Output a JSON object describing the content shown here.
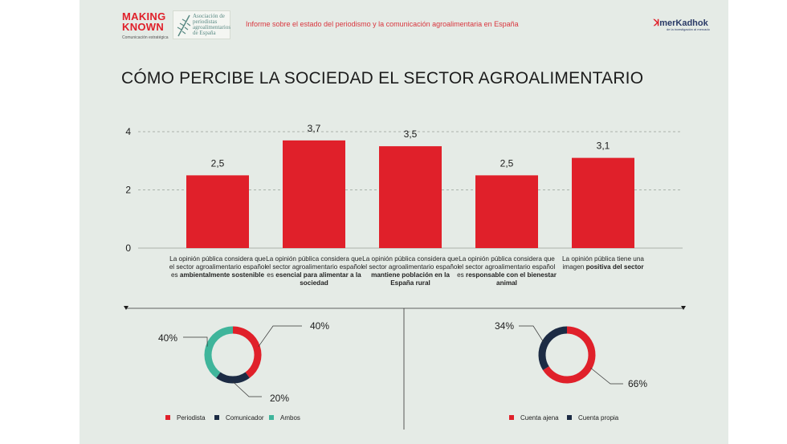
{
  "header": {
    "brand_left": "MAKING KNOWN",
    "brand_left_sub": "Comunicación estratégica",
    "assoc_logo_text": "Asociación de periodistas agroalimentarios de España",
    "report_title": "Informe sobre el estado del periodismo y la comunicación agroalimentaria en España",
    "brand_right": "merKadhok",
    "brand_right_tag": "de la investigación al mercado"
  },
  "page_title": "CÓMO PERCIBE LA SOCIEDAD EL SECTOR AGROALIMENTARIO",
  "colors": {
    "red": "#e0202a",
    "navy": "#1c2b44",
    "teal": "#3fb59b",
    "background": "#e5ebe6"
  },
  "chart_data": [
    {
      "type": "bar",
      "categories": [
        "La opinión pública considera que el sector agroalimentario español es ambientalmente sostenible",
        "La opinión pública considera que el sector agroalimentario español es esencial para alimentar a la sociedad",
        "La opinión pública considera que el sector agroalimentario español mantiene población en la España rural",
        "La opinión pública considera que el sector agroalimentario español es responsable con el bienestar animal",
        "La opinión pública tiene una imagen positiva del sector"
      ],
      "category_labels": [
        {
          "plain": "La opinión pública considera que el sector agroalimentario español es ",
          "bold": "ambientalmente sostenible"
        },
        {
          "plain": "La opinión pública considera que el sector agroalimentario español es ",
          "bold": "esencial para alimentar a la sociedad"
        },
        {
          "plain": "La opinión pública considera que el sector agroalimentario español ",
          "bold": "mantiene población en la España rural"
        },
        {
          "plain": "La opinión pública considera que el sector agroalimentario español es ",
          "bold": "responsable con el bienestar animal"
        },
        {
          "plain": "La opinión pública tiene una imagen ",
          "bold": "positiva del sector"
        }
      ],
      "values": [
        2.5,
        3.7,
        3.5,
        2.5,
        3.1
      ],
      "value_labels": [
        "2,5",
        "3,7",
        "3,5",
        "2,5",
        "3,1"
      ],
      "ylim": [
        0,
        4
      ],
      "yticks": [
        "0",
        "2",
        "4"
      ],
      "grid": true,
      "color": "#e0202a"
    },
    {
      "type": "pie",
      "style": "donut",
      "labels": [
        "Periodista",
        "Comunicador",
        "Ambos"
      ],
      "values": [
        40,
        20,
        40
      ],
      "value_labels": [
        "40%",
        "20%",
        "40%"
      ],
      "colors": [
        "#e0202a",
        "#1c2b44",
        "#3fb59b"
      ],
      "legend": "bottom"
    },
    {
      "type": "pie",
      "style": "donut",
      "labels": [
        "Cuenta ajena",
        "Cuenta propia"
      ],
      "values": [
        66,
        34
      ],
      "value_labels": [
        "66%",
        "34%"
      ],
      "colors": [
        "#e0202a",
        "#1c2b44"
      ],
      "legend": "bottom"
    }
  ]
}
